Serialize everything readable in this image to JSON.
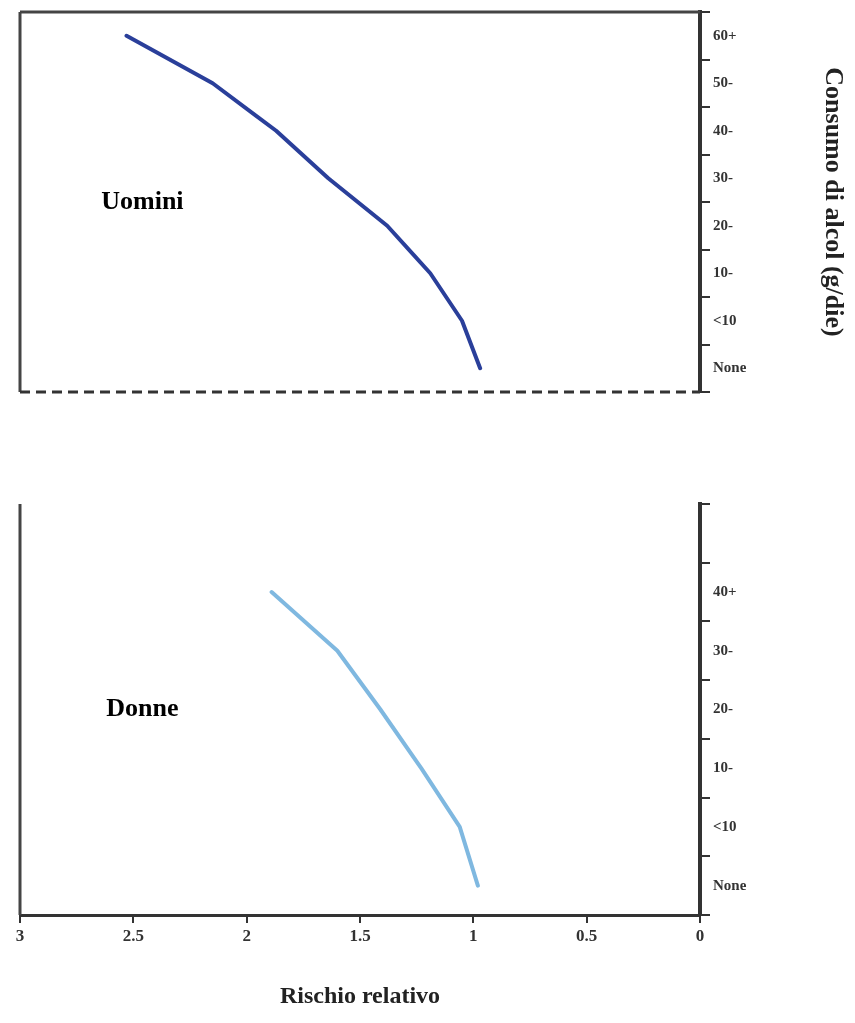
{
  "chart_data": [
    {
      "type": "line",
      "orientation": "horizontal",
      "ylabel": "Consumo di alcol (g/die)",
      "categories": [
        "60+",
        "50-",
        "40-",
        "30-",
        "20-",
        "10-",
        "<10",
        "None"
      ],
      "xlim": [
        3,
        0
      ],
      "xticks": [
        3,
        2.5,
        2,
        1.5,
        1,
        0.5,
        0
      ],
      "tick_labels": "y",
      "series": [
        {
          "name": "Uomini",
          "color": "#2a3f9a",
          "values": [
            2.53,
            2.15,
            1.87,
            1.64,
            1.38,
            1.19,
            1.05,
            0.97
          ]
        }
      ],
      "marker": "none",
      "line_style": "solid",
      "grid": false,
      "legend": false
    },
    {
      "type": "line",
      "orientation": "horizontal",
      "xlabel": "Rischio relativo",
      "categories": [
        null,
        "40+",
        "30-",
        "20-",
        "10-",
        "<10",
        "None"
      ],
      "xlim": [
        3,
        0
      ],
      "xticks": [
        3,
        2.5,
        2,
        1.5,
        1,
        0.5,
        0
      ],
      "series": [
        {
          "name": "Donne",
          "color": "#7fb8e0",
          "values": [
            null,
            1.89,
            1.6,
            1.41,
            1.23,
            1.06,
            0.98
          ]
        }
      ],
      "marker": "none",
      "line_style": "solid",
      "grid": false,
      "legend": false
    }
  ]
}
